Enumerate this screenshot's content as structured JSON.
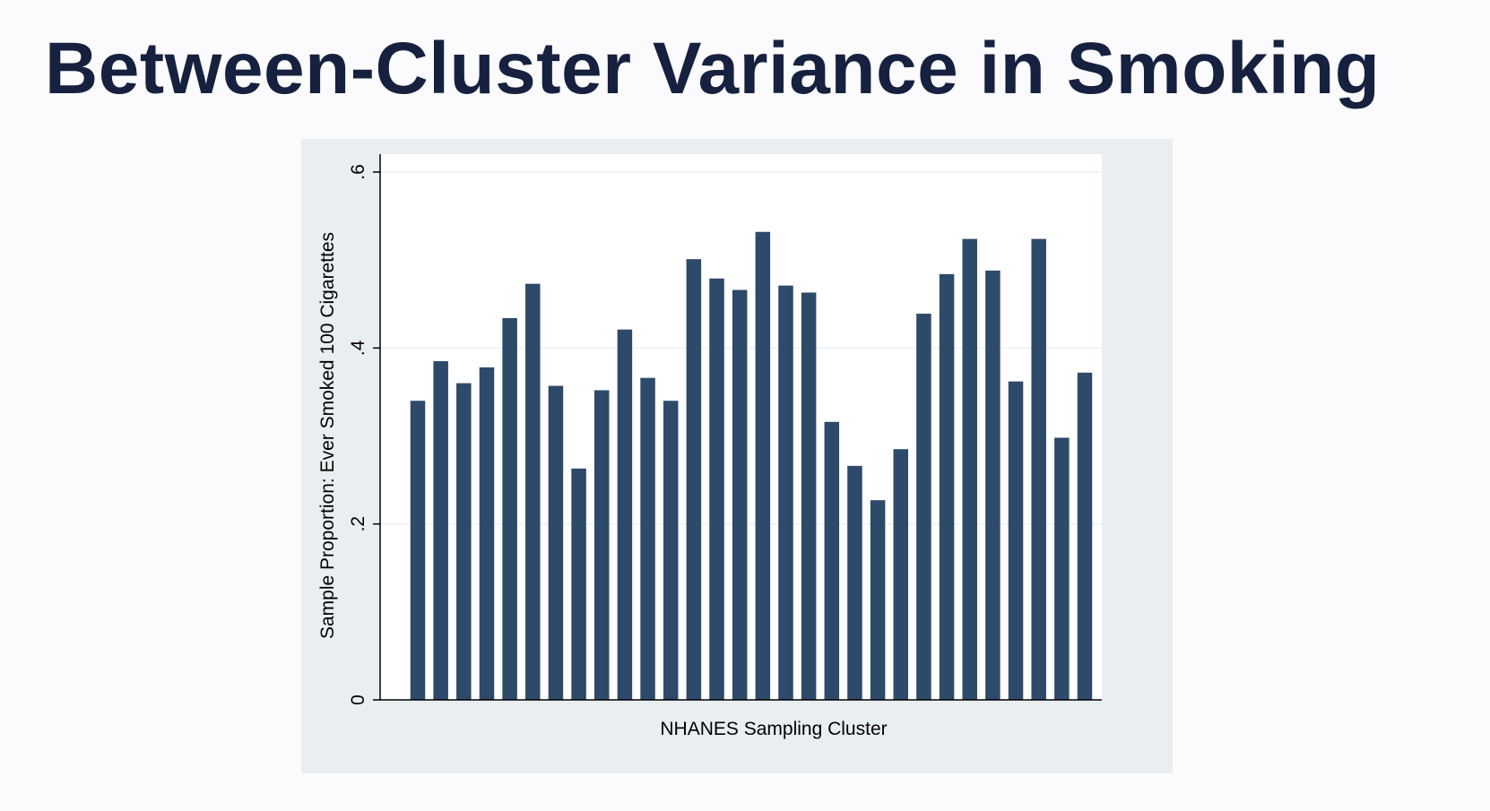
{
  "slide": {
    "title": "Between-Cluster Variance in Smoking"
  },
  "chart_data": {
    "type": "bar",
    "title": "",
    "xlabel": "NHANES Sampling Cluster",
    "ylabel": "Sample Proportion: Ever Smoked 100 Cigarettes",
    "ylim": [
      0,
      0.6
    ],
    "yticks": [
      {
        "value": 0,
        "label": "0"
      },
      {
        "value": 0.2,
        "label": ".2"
      },
      {
        "value": 0.4,
        "label": ".4"
      },
      {
        "value": 0.6,
        "label": ".6"
      }
    ],
    "grid": true,
    "values": [
      0.34,
      0.385,
      0.36,
      0.378,
      0.434,
      0.473,
      0.357,
      0.263,
      0.352,
      0.421,
      0.366,
      0.34,
      0.501,
      0.479,
      0.466,
      0.532,
      0.471,
      0.463,
      0.316,
      0.266,
      0.227,
      0.285,
      0.439,
      0.484,
      0.524,
      0.488,
      0.362,
      0.524,
      0.298,
      0.372
    ],
    "colors": {
      "bar": "#2e4a6a",
      "panel": "#e9eef1",
      "plot_bg": "#ffffff",
      "grid": "#eef1f4",
      "axis": "#000000",
      "title": "#16213f"
    }
  }
}
